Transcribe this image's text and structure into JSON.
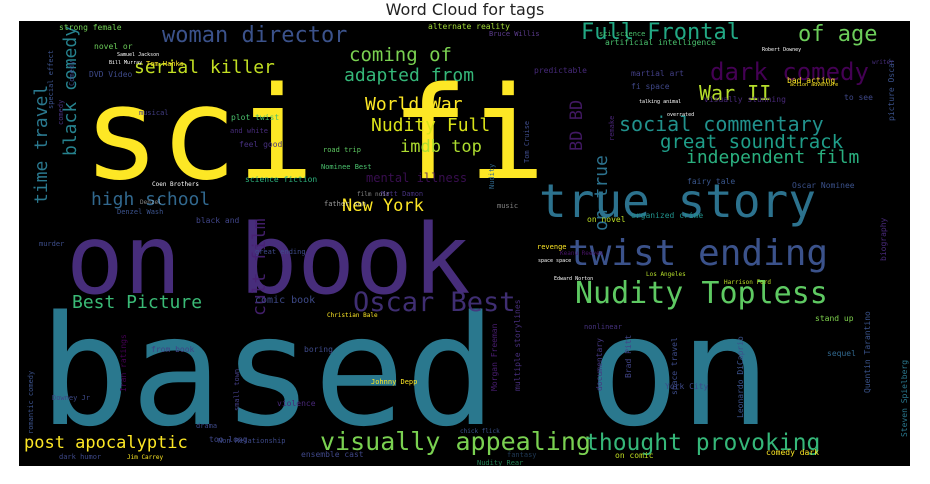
{
  "title": "Word Cloud for tags",
  "chart_data": {
    "type": "wordcloud",
    "title": "Word Cloud for tags",
    "background": "#000000",
    "colormap": [
      "#fde725",
      "#5ec962",
      "#21918c",
      "#3b528b",
      "#440154"
    ],
    "words": [
      {
        "text": "based on",
        "color": "#2a788e"
      },
      {
        "text": "sci fi",
        "color": "#fde725"
      },
      {
        "text": "on book",
        "color": "#472d7b"
      },
      {
        "text": "true story",
        "color": "#2c728e"
      },
      {
        "text": "twist ending",
        "color": "#3b528b"
      },
      {
        "text": "Nudity Topless",
        "color": "#5ec962"
      },
      {
        "text": "visually appealing",
        "color": "#7ad151"
      },
      {
        "text": "thought provoking",
        "color": "#35b779"
      },
      {
        "text": "Oscar Best",
        "color": "#46337e"
      },
      {
        "text": "woman director",
        "color": "#3b528b"
      },
      {
        "text": "Full Frontal",
        "color": "#22a884"
      },
      {
        "text": "of age",
        "color": "#6ccd5a"
      },
      {
        "text": "serial killer",
        "color": "#c2df23"
      },
      {
        "text": "coming of",
        "color": "#7ad151"
      },
      {
        "text": "adapted from",
        "color": "#35b779"
      },
      {
        "text": "dark comedy",
        "color": "#440154"
      },
      {
        "text": "War II",
        "color": "#b5de2b"
      },
      {
        "text": "World War",
        "color": "#fde725"
      },
      {
        "text": "social commentary",
        "color": "#21918c"
      },
      {
        "text": "Nudity Full",
        "color": "#d8e219"
      },
      {
        "text": "great soundtrack",
        "color": "#1f9e89"
      },
      {
        "text": "imdb top",
        "color": "#addc30"
      },
      {
        "text": "independent film",
        "color": "#2ab07f"
      },
      {
        "text": "black comedy",
        "color": "#26828e"
      },
      {
        "text": "time travel",
        "color": "#2a788e"
      },
      {
        "text": "high school",
        "color": "#31688e"
      },
      {
        "text": "New York",
        "color": "#fde725"
      },
      {
        "text": "cult film",
        "color": "#482173"
      },
      {
        "text": "Best Picture",
        "color": "#3aba76"
      },
      {
        "text": "post apocalyptic",
        "color": "#fde725"
      },
      {
        "text": "on true",
        "color": "#2c728e"
      },
      {
        "text": "BD BD",
        "color": "#481b6d"
      },
      {
        "text": "mental illness",
        "color": "#471164"
      },
      {
        "text": "comic book",
        "color": "#3e4a89"
      },
      {
        "text": "strong female",
        "color": "#73d056"
      },
      {
        "text": "alternate reality",
        "color": "#a2da37"
      },
      {
        "text": "Bruce Willis",
        "color": "#5c3c8d"
      },
      {
        "text": "sci science",
        "color": "#4ac16d"
      },
      {
        "text": "artificial intelligence",
        "color": "#4ac16d"
      },
      {
        "text": "novel or",
        "color": "#6ccd5a"
      },
      {
        "text": "predictable",
        "color": "#472a7a"
      },
      {
        "text": "martial art",
        "color": "#423f85"
      },
      {
        "text": "fi space",
        "color": "#3f4788"
      },
      {
        "text": "bad acting",
        "color": "#fde725"
      },
      {
        "text": "visually stunning",
        "color": "#482878"
      },
      {
        "text": "to see",
        "color": "#3f4889"
      },
      {
        "text": "picture Oscar",
        "color": "#3b528b"
      },
      {
        "text": "musical",
        "color": "#433e85"
      },
      {
        "text": "plot twist",
        "color": "#4ac16d"
      },
      {
        "text": "road trip",
        "color": "#5ec962"
      },
      {
        "text": "Tom Cruise",
        "color": "#3e4c8a"
      },
      {
        "text": "feel good",
        "color": "#46307e"
      },
      {
        "text": "and white",
        "color": "#472c7a"
      },
      {
        "text": "science fiction",
        "color": "#2db27d"
      },
      {
        "text": "Matt Damon",
        "color": "#46327e"
      },
      {
        "text": "Nominee Best",
        "color": "#4ac16d"
      },
      {
        "text": "fairy tale",
        "color": "#39568c"
      },
      {
        "text": "Oscar Nominee",
        "color": "#3b528b"
      },
      {
        "text": "organized crime",
        "color": "#20928c"
      },
      {
        "text": "on novel",
        "color": "#bddf26"
      },
      {
        "text": "black and",
        "color": "#404588"
      },
      {
        "text": "great ending",
        "color": "#3e4a89"
      },
      {
        "text": "murder",
        "color": "#3d4e8a"
      },
      {
        "text": "biography",
        "color": "#482979"
      },
      {
        "text": "Christian Bale",
        "color": "#fde725"
      },
      {
        "text": "from book",
        "color": "#414287"
      },
      {
        "text": "boring",
        "color": "#3e4a89"
      },
      {
        "text": "Morgan Freeman",
        "color": "#481d6f"
      },
      {
        "text": "multiple storylines",
        "color": "#472e7c"
      },
      {
        "text": "documentary",
        "color": "#453781"
      },
      {
        "text": "space travel",
        "color": "#3e4c8a"
      },
      {
        "text": "Brad Pitt",
        "color": "#414487"
      },
      {
        "text": "Johnny Depp",
        "color": "#fde725"
      },
      {
        "text": "violence",
        "color": "#482878"
      },
      {
        "text": "small town",
        "color": "#433e85"
      },
      {
        "text": "drama",
        "color": "#3e4a89"
      },
      {
        "text": "too long",
        "color": "#3f4788"
      },
      {
        "text": "Iran ratings",
        "color": "#440154"
      },
      {
        "text": "romantic comedy",
        "color": "#3b528b"
      },
      {
        "text": "sequel",
        "color": "#31688e"
      },
      {
        "text": "Leonardo DiCaprio",
        "color": "#3b528b"
      },
      {
        "text": "Steven Spielberg",
        "color": "#2a788e"
      },
      {
        "text": "Quentin Tarantino",
        "color": "#3a538b"
      },
      {
        "text": "stand up",
        "color": "#7fd34e"
      },
      {
        "text": "comedy dark",
        "color": "#fde725"
      },
      {
        "text": "on comic",
        "color": "#c2df23"
      },
      {
        "text": "dark humor",
        "color": "#3e4989"
      },
      {
        "text": "ensemble cast",
        "color": "#3f4788"
      },
      {
        "text": "Jim Carrey",
        "color": "#fde725"
      },
      {
        "text": "Nudity Rear",
        "color": "#35b779"
      },
      {
        "text": "fantasy",
        "color": "#355f8d"
      },
      {
        "text": "nonlinear",
        "color": "#46327e"
      },
      {
        "text": "Keanu Reeves",
        "color": "#481467"
      },
      {
        "text": "revenge",
        "color": "#fde725"
      },
      {
        "text": "space space",
        "color": "#ffffff"
      },
      {
        "text": "Edward Norton",
        "color": "#ffffff"
      },
      {
        "text": "Harrison Ford",
        "color": "#bddf26"
      },
      {
        "text": "Los Angeles",
        "color": "#b5de2b"
      },
      {
        "text": "Coen Brothers",
        "color": "#ffffff"
      },
      {
        "text": "Bill Murray",
        "color": "#ffffff"
      },
      {
        "text": "Robert Downey",
        "color": "#ffffff"
      },
      {
        "text": "writer",
        "color": "#472e7c"
      },
      {
        "text": "action adventure",
        "color": "#fde725"
      },
      {
        "text": "talking animal",
        "color": "#ffffff"
      },
      {
        "text": "overrated",
        "color": "#ffffff"
      },
      {
        "text": "Tom Hanks",
        "color": "#fde725"
      },
      {
        "text": "special effect",
        "color": "#3b528b"
      },
      {
        "text": "DVD Video",
        "color": "#3e4a89"
      },
      {
        "text": "Samuel Jackson",
        "color": "#ffffff"
      },
      {
        "text": "Comedy",
        "color": "#3e4c8a"
      },
      {
        "text": "Denzel Wash",
        "color": "#3b528b"
      },
      {
        "text": "comedy",
        "color": "#46327e"
      },
      {
        "text": "remake",
        "color": "#482475"
      },
      {
        "text": "Nudity",
        "color": "#31688e"
      },
      {
        "text": "music",
        "color": "#ffffff"
      },
      {
        "text": "father son",
        "color": "#ffffff"
      },
      {
        "text": "film noir",
        "color": "#ffffff"
      },
      {
        "text": "Denzel",
        "color": "#ffffff"
      },
      {
        "text": "chick flick",
        "color": "#3b528b"
      },
      {
        "text": "Downey Jr",
        "color": "#3e4a89"
      },
      {
        "text": "Non Relationship",
        "color": "#3e4a89"
      },
      {
        "text": "York City",
        "color": "#3e4a89"
      }
    ]
  }
}
